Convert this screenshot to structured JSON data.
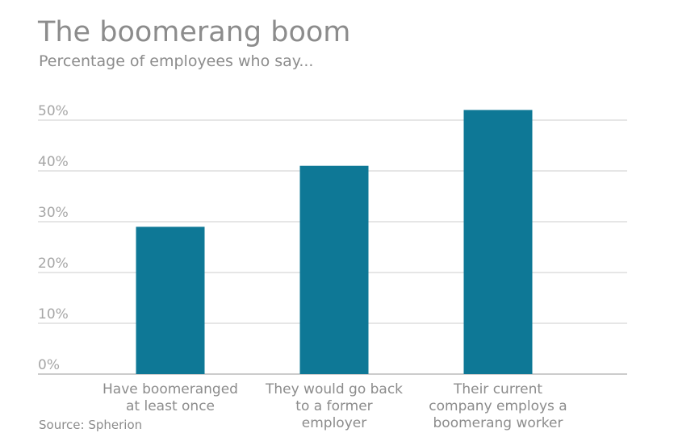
{
  "header": {
    "title": "The boomerang boom",
    "subtitle": "Percentage of employees who say..."
  },
  "footer": {
    "source": "Source: Spherion"
  },
  "colors": {
    "bar": "#0e7896",
    "grid": "#cccccc",
    "axis": "#999999",
    "text": "#8c8c8c"
  },
  "chart_data": {
    "type": "bar",
    "title": "The boomerang boom",
    "subtitle": "Percentage of employees who say...",
    "categories": [
      "Have boomeranged at least once",
      "They would go back to a former employer",
      "Their current company employs a boomerang worker"
    ],
    "category_lines": [
      [
        "Have boomeranged",
        "at least once"
      ],
      [
        "They would go back",
        "to a former",
        "employer"
      ],
      [
        "Their current",
        "company employs a",
        "boomerang worker"
      ]
    ],
    "values": [
      29,
      41,
      52
    ],
    "unit": "%",
    "ylim": [
      0,
      50
    ],
    "yticks": [
      "0%",
      "10%",
      "20%",
      "30%",
      "40%",
      "50%"
    ],
    "grid": true,
    "legend": "none"
  }
}
